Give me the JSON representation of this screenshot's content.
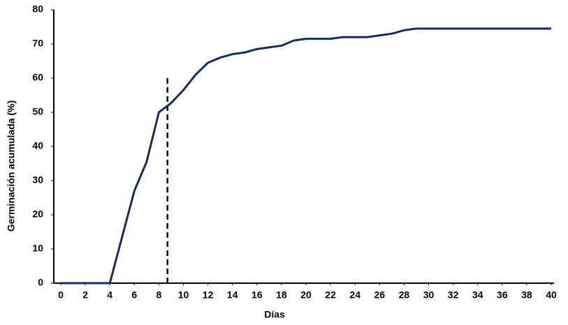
{
  "chart_data": {
    "type": "line",
    "xlabel": "Días",
    "ylabel": "Germinación acumulada (%)",
    "x": [
      0,
      1,
      2,
      3,
      4,
      5,
      6,
      7,
      8,
      9,
      10,
      11,
      12,
      13,
      14,
      15,
      16,
      17,
      18,
      19,
      20,
      21,
      22,
      23,
      24,
      25,
      26,
      27,
      28,
      29,
      30,
      31,
      32,
      33,
      34,
      35,
      36,
      37,
      38,
      39,
      40
    ],
    "values": [
      0,
      0,
      0,
      0,
      0,
      13.5,
      27,
      35.5,
      50,
      52.7,
      56.5,
      61,
      64.5,
      66,
      67,
      67.5,
      68.5,
      69,
      69.5,
      71,
      71.5,
      71.5,
      71.5,
      72,
      72,
      72,
      72.5,
      73,
      74,
      74.5,
      74.5,
      74.5,
      74.5,
      74.5,
      74.5,
      74.5,
      74.5,
      74.5,
      74.5,
      74.5,
      74.5
    ],
    "color": "#1b2a5e",
    "xlim": [
      0,
      40
    ],
    "xticks": [
      0,
      2,
      4,
      6,
      8,
      10,
      12,
      14,
      16,
      18,
      20,
      22,
      24,
      26,
      28,
      30,
      32,
      34,
      36,
      38,
      40
    ],
    "ylim": [
      0,
      80
    ],
    "yticks": [
      0,
      10,
      20,
      30,
      40,
      50,
      60,
      70,
      80
    ],
    "reference_line": {
      "x": 8.7,
      "y": 60,
      "color": "#000000"
    },
    "grid": false
  }
}
